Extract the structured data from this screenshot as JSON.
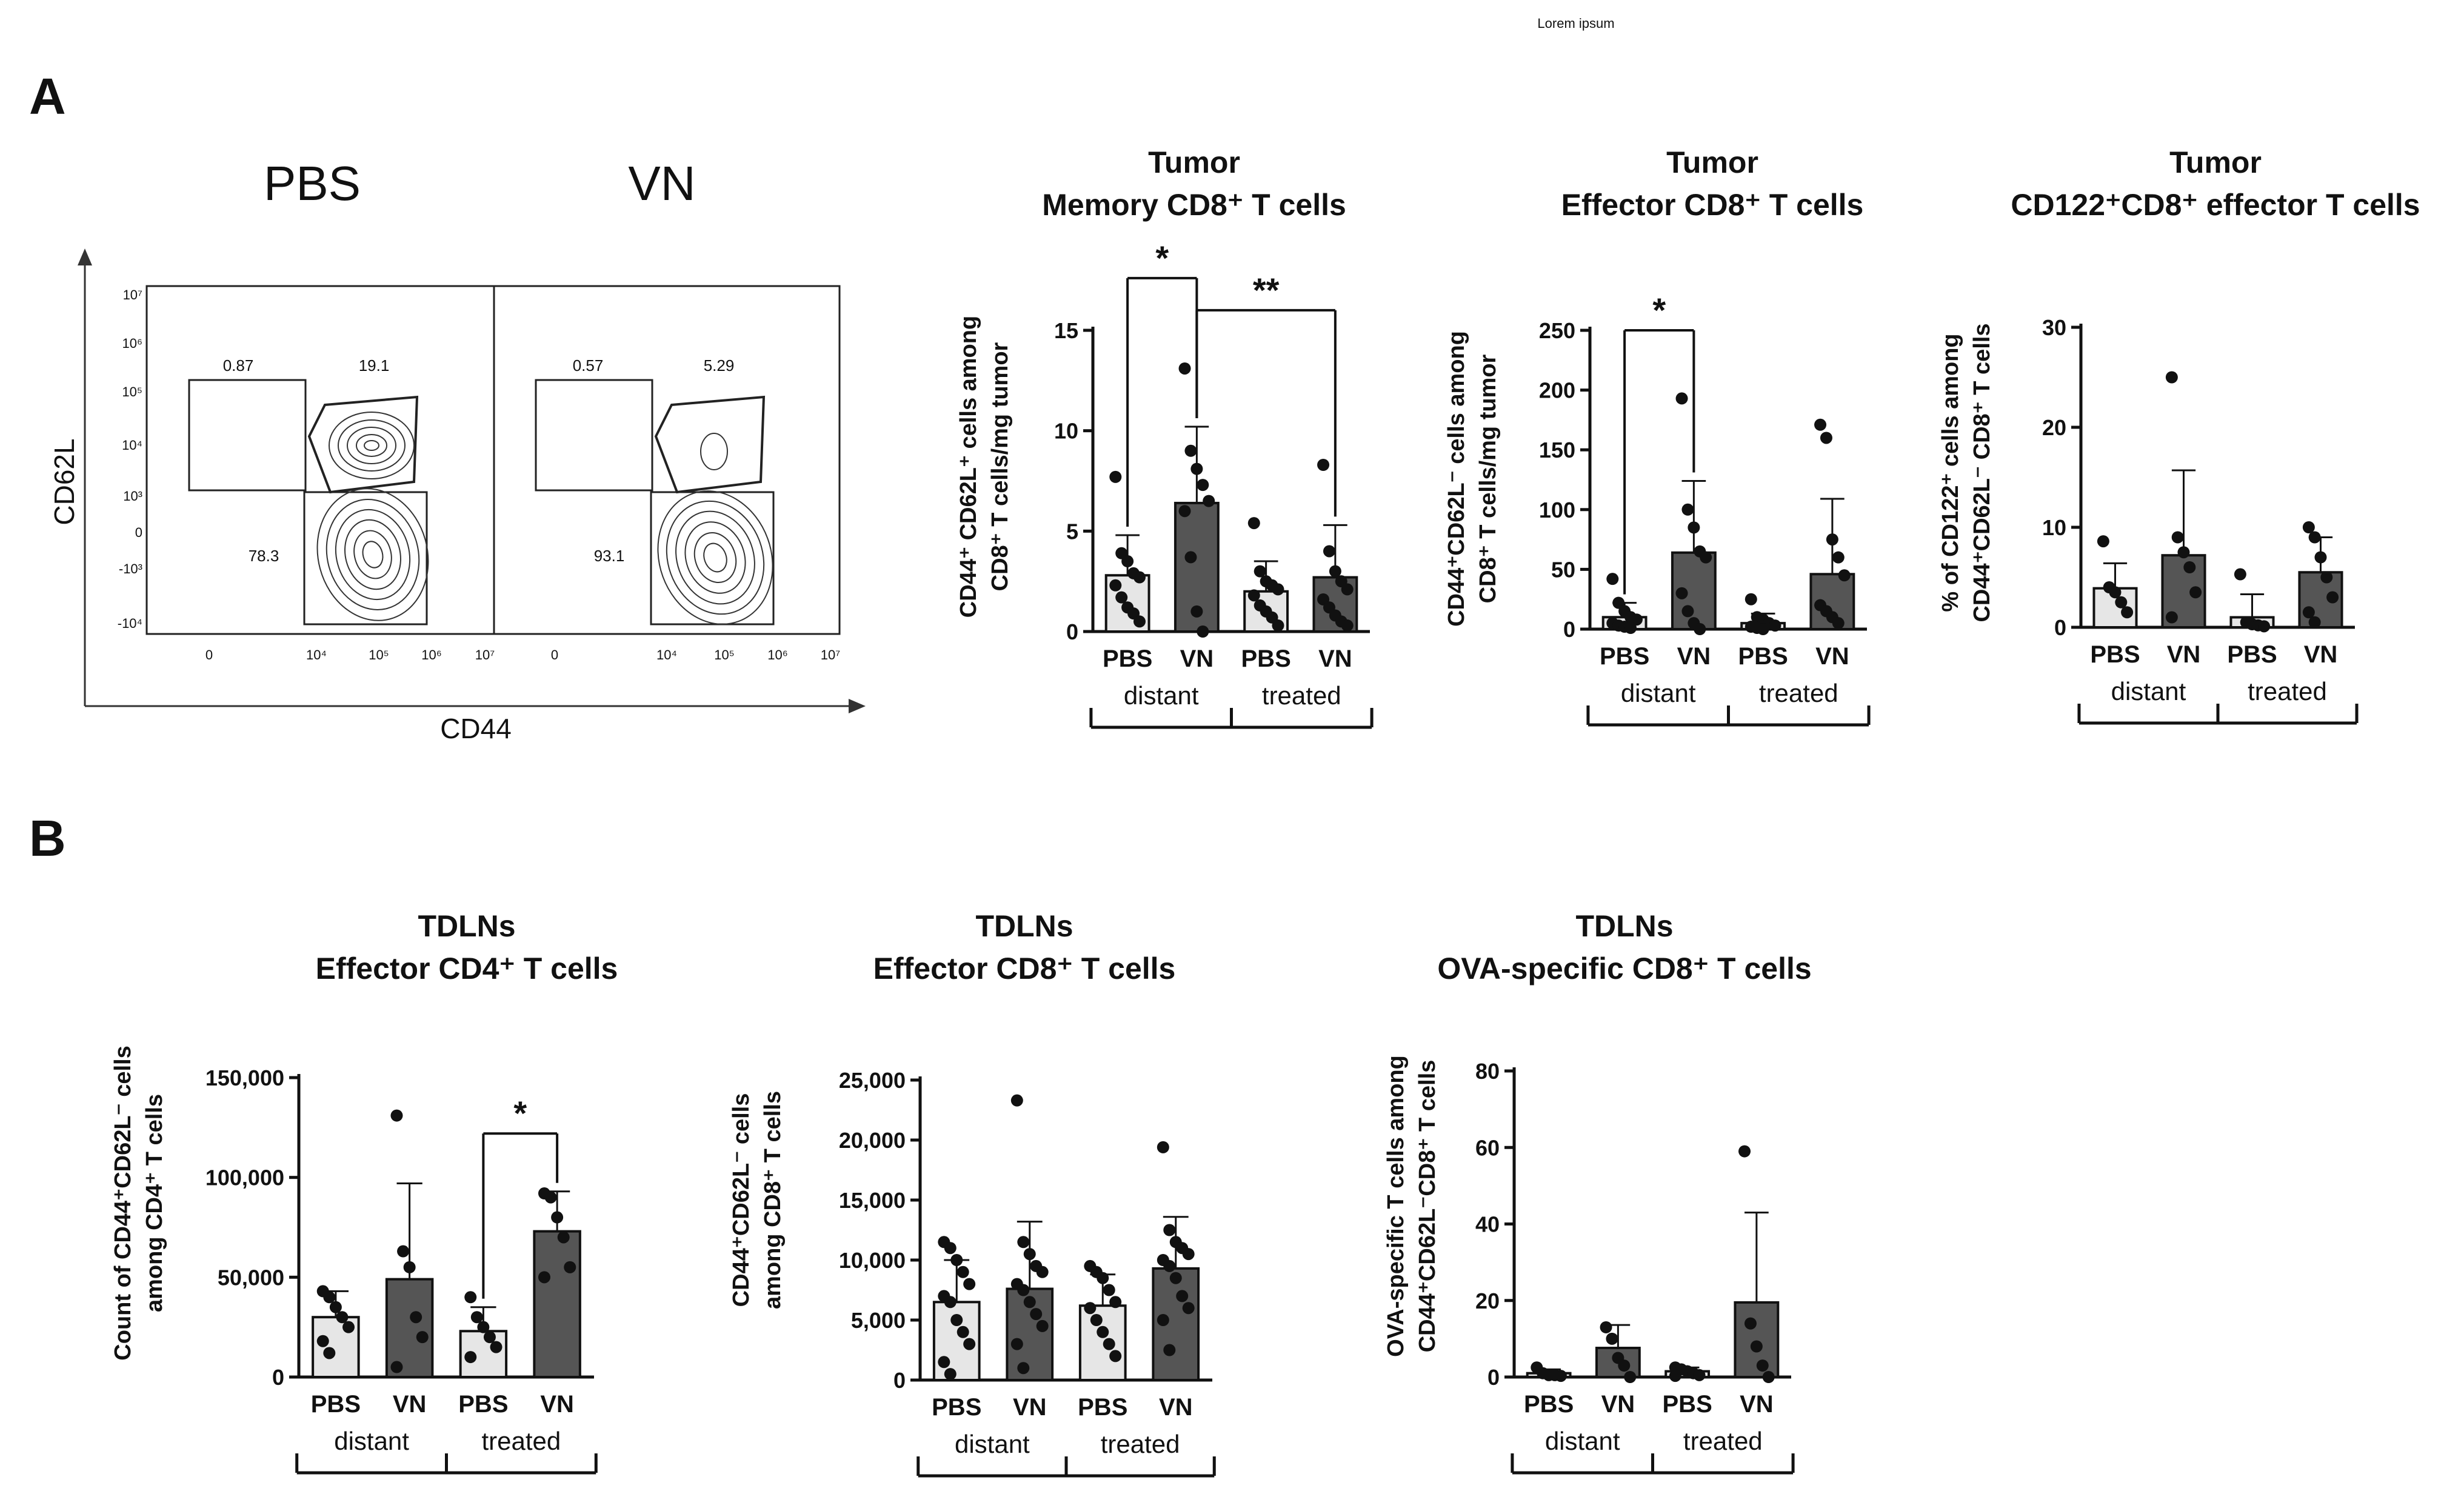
{
  "header": "Lorem ipsum",
  "panel_labels": [
    "A",
    "B"
  ],
  "flow": {
    "conditions": [
      "PBS",
      "VN"
    ],
    "x_axis": "CD44",
    "y_axis": "CD62L",
    "x_ticks": [
      "0",
      "10⁴",
      "10⁵",
      "10⁶",
      "10⁷"
    ],
    "y_ticks": [
      "10⁷",
      "10⁶",
      "10⁵",
      "10⁴",
      "10³",
      "0",
      "-10³",
      "-10⁴"
    ],
    "gates": [
      {
        "upper_left": "0.87",
        "upper_right": "19.1",
        "lower": "78.3"
      },
      {
        "upper_left": "0.57",
        "upper_right": "5.29",
        "lower": "93.1"
      }
    ]
  },
  "chart_data": [
    {
      "type": "bar",
      "title": [
        "Tumor",
        "Memory CD8⁺ T cells"
      ],
      "ylabel": [
        "CD44⁺ CD62L⁺ cells among",
        "CD8⁺ T cells/mg tumor"
      ],
      "categories": [
        "PBS",
        "VN",
        "PBS",
        "VN"
      ],
      "groups": [
        "distant",
        "treated"
      ],
      "values": [
        2.8,
        6.4,
        2.0,
        2.7
      ],
      "errors": [
        2.0,
        3.8,
        1.5,
        2.6
      ],
      "colors": [
        "#e6e6e6",
        "#555555",
        "#e6e6e6",
        "#555555"
      ],
      "points": [
        [
          7.7,
          3.9,
          3.5,
          2.9,
          2.7,
          2.3,
          1.7,
          1.2,
          0.9,
          0.5
        ],
        [
          13.1,
          9.0,
          8.1,
          7.3,
          6.5,
          6.0,
          3.7,
          1.0,
          0.0
        ],
        [
          5.4,
          3.0,
          2.5,
          2.3,
          2.1,
          1.8,
          1.3,
          1.0,
          0.7,
          0.3
        ],
        [
          8.3,
          4.0,
          3.0,
          2.5,
          2.1,
          1.6,
          1.2,
          0.8,
          0.5,
          0.3
        ]
      ],
      "ylim": [
        0,
        15
      ],
      "yticks": [
        0,
        5,
        10,
        15
      ],
      "ytick_labels": [
        "0",
        "5",
        "10",
        "15"
      ],
      "significance": [
        {
          "from": 0,
          "to": 1,
          "label": "*",
          "y": 17.6
        },
        {
          "from": 1,
          "to": 3,
          "label": "**",
          "y": 16.0
        }
      ]
    },
    {
      "type": "bar",
      "title": [
        "Tumor",
        "Effector CD8⁺ T cells"
      ],
      "ylabel": [
        "CD44⁺CD62L⁻ cells among",
        "CD8⁺ T cells/mg tumor"
      ],
      "categories": [
        "PBS",
        "VN",
        "PBS",
        "VN"
      ],
      "groups": [
        "distant",
        "treated"
      ],
      "values": [
        10,
        64,
        5,
        46
      ],
      "errors": [
        12,
        60,
        8,
        63
      ],
      "colors": [
        "#e6e6e6",
        "#555555",
        "#e6e6e6",
        "#555555"
      ],
      "points": [
        [
          42,
          22,
          15,
          10,
          8,
          5,
          3,
          2,
          1
        ],
        [
          193,
          100,
          85,
          65,
          60,
          30,
          15,
          5,
          0
        ],
        [
          25,
          10,
          8,
          5,
          3,
          2,
          1,
          0
        ],
        [
          171,
          160,
          75,
          60,
          45,
          20,
          15,
          10,
          5
        ]
      ],
      "ylim": [
        0,
        250
      ],
      "yticks": [
        0,
        50,
        100,
        150,
        200,
        250
      ],
      "ytick_labels": [
        "0",
        "50",
        "100",
        "150",
        "200",
        "250"
      ],
      "significance": [
        {
          "from": 0,
          "to": 1,
          "label": "*",
          "y": 250
        }
      ]
    },
    {
      "type": "bar",
      "title": [
        "Tumor",
        "CD122⁺CD8⁺ effector T cells"
      ],
      "ylabel": [
        "% of CD122⁺ cells among",
        "CD44⁺CD62L⁻ CD8⁺ T cells"
      ],
      "categories": [
        "PBS",
        "VN",
        "PBS",
        "VN"
      ],
      "groups": [
        "distant",
        "treated"
      ],
      "values": [
        3.9,
        7.2,
        1.0,
        5.5
      ],
      "errors": [
        2.5,
        8.5,
        2.3,
        3.5
      ],
      "colors": [
        "#e6e6e6",
        "#555555",
        "#e6e6e6",
        "#555555"
      ],
      "points": [
        [
          8.6,
          4.0,
          3.5,
          2.5,
          1.5
        ],
        [
          25.0,
          9.0,
          7.5,
          6.0,
          3.5,
          1.0
        ],
        [
          5.3,
          0.5,
          0.3,
          0.2,
          0.1
        ],
        [
          10.0,
          9.0,
          7.0,
          5.0,
          3.0,
          1.5,
          0.5
        ]
      ],
      "ylim": [
        0,
        30
      ],
      "yticks": [
        0,
        10,
        20,
        30
      ],
      "ytick_labels": [
        "0",
        "10",
        "20",
        "30"
      ],
      "significance": []
    },
    {
      "type": "bar",
      "title": [
        "TDLNs",
        "Effector CD4⁺ T cells"
      ],
      "ylabel": [
        "Count of CD44⁺CD62L⁻ cells",
        "among CD4⁺ T cells"
      ],
      "categories": [
        "PBS",
        "VN",
        "PBS",
        "VN"
      ],
      "groups": [
        "distant",
        "treated"
      ],
      "values": [
        30000,
        49000,
        23000,
        73000
      ],
      "errors": [
        13000,
        48000,
        12000,
        20000
      ],
      "colors": [
        "#e6e6e6",
        "#555555",
        "#e6e6e6",
        "#555555"
      ],
      "points": [
        [
          43000,
          40000,
          35000,
          30000,
          25000,
          18000,
          12000
        ],
        [
          131000,
          63000,
          55000,
          30000,
          20000,
          5000
        ],
        [
          40000,
          30000,
          25000,
          20000,
          15000,
          10000
        ],
        [
          92000,
          90000,
          80000,
          70000,
          55000,
          50000
        ]
      ],
      "ylim": [
        0,
        150000
      ],
      "yticks": [
        0,
        50000,
        100000,
        150000
      ],
      "ytick_labels": [
        "0",
        "50,000",
        "100,000",
        "150,000"
      ],
      "significance": [
        {
          "from": 2,
          "to": 3,
          "label": "*",
          "y": 122000
        }
      ]
    },
    {
      "type": "bar",
      "title": [
        "TDLNs",
        "Effector CD8⁺ T cells"
      ],
      "ylabel": [
        "CD44⁺CD62L⁻ cells",
        "among CD8⁺ T cells"
      ],
      "categories": [
        "PBS",
        "VN",
        "PBS",
        "VN"
      ],
      "groups": [
        "distant",
        "treated"
      ],
      "values": [
        6500,
        7600,
        6200,
        9300
      ],
      "errors": [
        3500,
        5600,
        2600,
        4300
      ],
      "colors": [
        "#e6e6e6",
        "#555555",
        "#e6e6e6",
        "#555555"
      ],
      "points": [
        [
          11500,
          11000,
          10000,
          9000,
          8000,
          7000,
          6500,
          5000,
          4000,
          3000,
          1500,
          500
        ],
        [
          23300,
          11500,
          10500,
          9500,
          9000,
          8000,
          7500,
          6500,
          5500,
          4500,
          3000,
          1000
        ],
        [
          9500,
          9000,
          8500,
          7500,
          6500,
          6000,
          5000,
          4000,
          3000,
          2000
        ],
        [
          19400,
          12500,
          11500,
          11000,
          10500,
          10000,
          9500,
          8500,
          7000,
          6000,
          5000,
          2500
        ]
      ],
      "ylim": [
        0,
        25000
      ],
      "yticks": [
        0,
        5000,
        10000,
        15000,
        20000,
        25000
      ],
      "ytick_labels": [
        "0",
        "5,000",
        "10,000",
        "15,000",
        "20,000",
        "25,000"
      ],
      "significance": []
    },
    {
      "type": "bar",
      "title": [
        "TDLNs",
        "OVA-specific CD8⁺ T cells"
      ],
      "ylabel": [
        "OVA-specific T cells among",
        "CD44⁺CD62L⁻CD8⁺ T cells"
      ],
      "categories": [
        "PBS",
        "VN",
        "PBS",
        "VN"
      ],
      "groups": [
        "distant",
        "treated"
      ],
      "values": [
        1.0,
        7.6,
        1.5,
        19.5
      ],
      "errors": [
        1.0,
        6.0,
        1.0,
        23.5
      ],
      "colors": [
        "#e6e6e6",
        "#555555",
        "#e6e6e6",
        "#555555"
      ],
      "points": [
        [
          2.5,
          1.0,
          0.5,
          0.5,
          0.3
        ],
        [
          13.0,
          10.0,
          5.0,
          3.0,
          0.0
        ],
        [
          2.5,
          2.0,
          1.5,
          1.0,
          0.5,
          0.3
        ],
        [
          59.0,
          14.0,
          8.0,
          3.0,
          0.0
        ]
      ],
      "ylim": [
        0,
        80
      ],
      "yticks": [
        0,
        20,
        40,
        60,
        80
      ],
      "ytick_labels": [
        "0",
        "20",
        "40",
        "60",
        "80"
      ],
      "significance": []
    }
  ]
}
